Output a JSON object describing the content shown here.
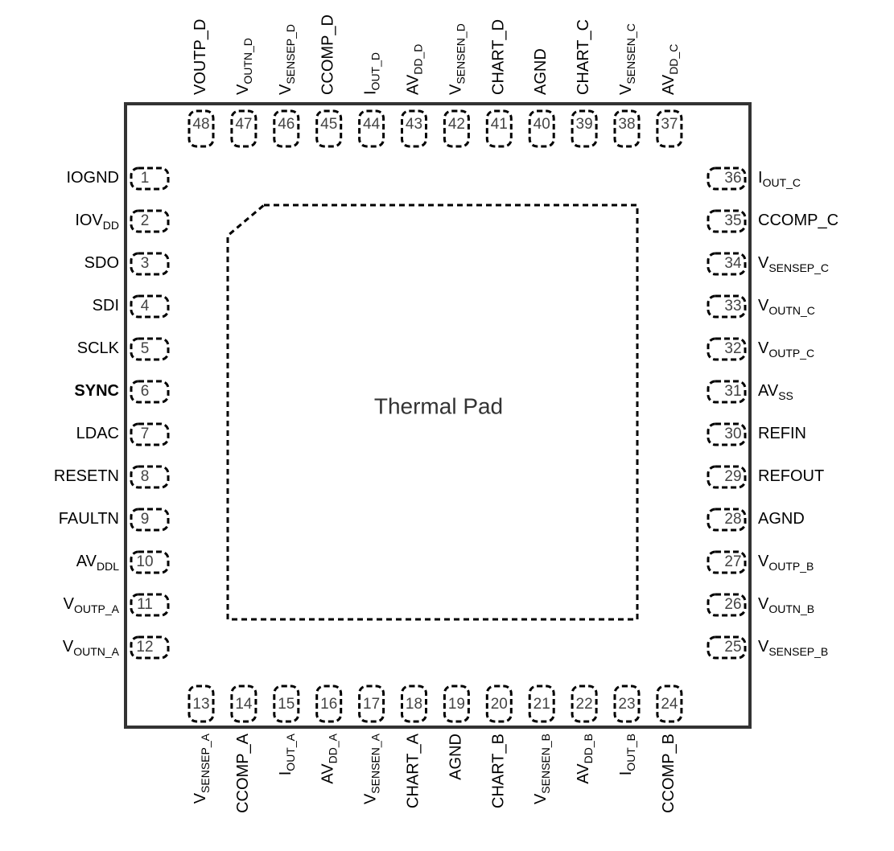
{
  "title": "Thermal Pad",
  "pins": {
    "left": [
      {
        "number": 1,
        "label": "IOGND"
      },
      {
        "number": 2,
        "label": "IOV",
        "sub": "DD"
      },
      {
        "number": 3,
        "label": "SDO"
      },
      {
        "number": 4,
        "label": "SDI"
      },
      {
        "number": 5,
        "label": "SCLK"
      },
      {
        "number": 6,
        "label": "SYNC",
        "bold": true
      },
      {
        "number": 7,
        "label": "LDAC"
      },
      {
        "number": 8,
        "label": "RESETN"
      },
      {
        "number": 9,
        "label": "FAULTN"
      },
      {
        "number": 10,
        "label": "AV",
        "sub": "DDL"
      },
      {
        "number": 11,
        "label": "V",
        "sub": "OUTP_A"
      },
      {
        "number": 12,
        "label": "V",
        "sub": "OUTN_A"
      }
    ],
    "right": [
      {
        "number": 36,
        "label": "I",
        "sub": "OUT_C"
      },
      {
        "number": 35,
        "label": "CCOMP_C"
      },
      {
        "number": 34,
        "label": "V",
        "sub": "SENSEP_C"
      },
      {
        "number": 33,
        "label": "V",
        "sub": "OUTN_C"
      },
      {
        "number": 32,
        "label": "V",
        "sub": "OUTP_C"
      },
      {
        "number": 31,
        "label": "AV",
        "sub": "SS"
      },
      {
        "number": 30,
        "label": "REFIN"
      },
      {
        "number": 29,
        "label": "REFOUT"
      },
      {
        "number": 28,
        "label": "AGND"
      },
      {
        "number": 27,
        "label": "V",
        "sub": "OUTP_B"
      },
      {
        "number": 26,
        "label": "V",
        "sub": "OUTN_B"
      },
      {
        "number": 25,
        "label": "V",
        "sub": "SENSEP_B"
      }
    ],
    "top": [
      {
        "number": 48,
        "label": "VOUTP_D"
      },
      {
        "number": 47,
        "label": "V",
        "sub": "OUTN_D"
      },
      {
        "number": 46,
        "label": "V",
        "sub": "SENSEP_D"
      },
      {
        "number": 45,
        "label": "CCOMP_D"
      },
      {
        "number": 44,
        "label": "I",
        "sub": "OUT_D"
      },
      {
        "number": 43,
        "label": "AV",
        "sub": "DD_D"
      },
      {
        "number": 42,
        "label": "V",
        "sub": "SENSEN_D"
      },
      {
        "number": 41,
        "label": "CHART_D"
      },
      {
        "number": 40,
        "label": "AGND"
      },
      {
        "number": 39,
        "label": "CHART_C"
      },
      {
        "number": 38,
        "label": "V",
        "sub": "SENSEN_C"
      },
      {
        "number": 37,
        "label": "AV",
        "sub": "DD_C"
      }
    ],
    "bottom": [
      {
        "number": 13,
        "label": "V",
        "sub": "SENSEP_A"
      },
      {
        "number": 14,
        "label": "CCOMP_A"
      },
      {
        "number": 15,
        "label": "I",
        "sub": "OUT_A"
      },
      {
        "number": 16,
        "label": "AV",
        "sub": "DD_A"
      },
      {
        "number": 17,
        "label": "V",
        "sub": "SENSEN_A"
      },
      {
        "number": 18,
        "label": "CHART_A"
      },
      {
        "number": 19,
        "label": "AGND"
      },
      {
        "number": 20,
        "label": "CHART_B"
      },
      {
        "number": 21,
        "label": "V",
        "sub": "SENSEN_B"
      },
      {
        "number": 22,
        "label": "AV",
        "sub": "DD_B"
      },
      {
        "number": 23,
        "label": "I",
        "sub": "OUT_B"
      },
      {
        "number": 24,
        "label": "CCOMP_B"
      }
    ]
  }
}
